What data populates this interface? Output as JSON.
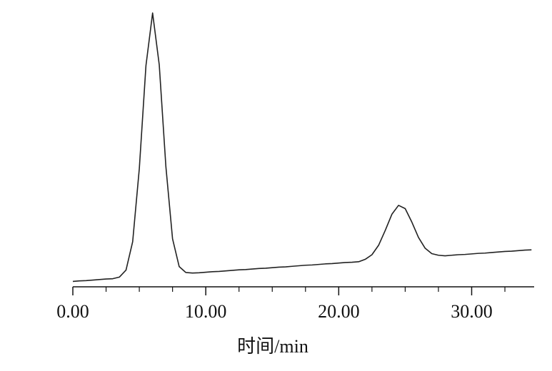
{
  "chart_data": {
    "type": "line",
    "xlabel": "时间/min",
    "x": [
      0,
      0.5,
      1,
      1.5,
      2,
      2.5,
      3,
      3.5,
      4,
      4.5,
      5,
      5.5,
      6,
      6.5,
      7,
      7.5,
      8,
      8.5,
      9,
      9.5,
      10,
      10.5,
      11,
      11.5,
      12,
      12.5,
      13,
      13.5,
      14,
      14.5,
      15,
      15.5,
      16,
      16.5,
      17,
      17.5,
      18,
      18.5,
      19,
      19.5,
      20,
      20.5,
      21,
      21.5,
      22,
      22.5,
      23,
      23.5,
      24,
      24.5,
      25,
      25.5,
      26,
      26.5,
      27,
      27.5,
      28,
      28.5,
      29,
      29.5,
      30,
      30.5,
      31,
      31.5,
      32,
      32.5,
      33,
      33.5,
      34,
      34.5
    ],
    "values": [
      2.0,
      2.2,
      2.3,
      2.5,
      2.7,
      2.9,
      3.0,
      3.6,
      6.2,
      16.7,
      43.8,
      82.0,
      101.5,
      82.3,
      44.5,
      17.8,
      7.5,
      5.3,
      5.1,
      5.2,
      5.4,
      5.6,
      5.7,
      5.9,
      6.1,
      6.3,
      6.4,
      6.6,
      6.8,
      6.9,
      7.1,
      7.3,
      7.4,
      7.6,
      7.8,
      8.0,
      8.1,
      8.3,
      8.5,
      8.6,
      8.8,
      9.0,
      9.1,
      9.3,
      10.2,
      11.9,
      15.4,
      20.9,
      26.9,
      30.2,
      29.0,
      24.0,
      18.3,
      14.3,
      12.3,
      11.7,
      11.5,
      11.7,
      11.9,
      12.0,
      12.2,
      12.4,
      12.5,
      12.7,
      12.9,
      13.1,
      13.2,
      13.4,
      13.6,
      13.7
    ],
    "color": "#222222",
    "xlim": [
      0,
      34.7
    ],
    "ylim": [
      0,
      105
    ],
    "xticks": [
      {
        "value": 0,
        "label": "0.00"
      },
      {
        "value": 10,
        "label": "10.00"
      },
      {
        "value": 20,
        "label": "20.00"
      },
      {
        "value": 30,
        "label": "30.00"
      }
    ],
    "xminorticks": [
      2.5,
      5,
      7.5,
      12.5,
      15,
      17.5,
      22.5,
      25,
      27.5,
      32.5
    ]
  }
}
